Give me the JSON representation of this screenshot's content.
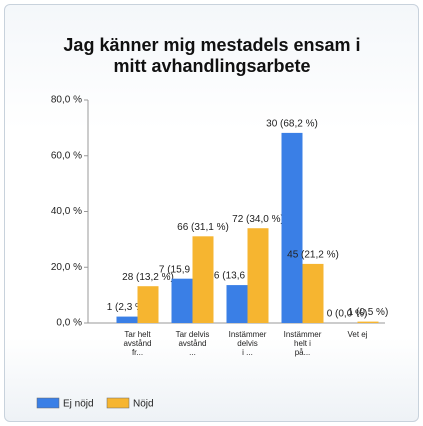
{
  "chart_data": {
    "type": "bar",
    "title": "Jag känner mig mestadels ensam i mitt avhandlingsarbete",
    "categories": [
      "Tar helt\navstånd\nfr...",
      "Tar delvis\navstånd\n...",
      "Instämmer\ndelvis\ni ...",
      "Instämmer\nhelt i\npå...",
      "Vet ej"
    ],
    "series": [
      {
        "name": "Ej nöjd",
        "color": "#3a7fe6",
        "values": [
          2.3,
          15.9,
          13.6,
          68.2,
          0.0
        ],
        "value_labels": [
          "1 (2,3 %)",
          "7 (15,9 %)",
          "6 (13,6 %)",
          "30 (68,2 %)",
          "0 (0,0 %)"
        ]
      },
      {
        "name": "Nöjd",
        "color": "#f6b530",
        "values": [
          13.2,
          31.1,
          34.0,
          21.2,
          0.5
        ],
        "value_labels": [
          "28 (13,2 %)",
          "66 (31,1 %)",
          "72 (34,0 %)",
          "45 (21,2 %)",
          "1 (0,5 %)"
        ]
      }
    ],
    "ylim": [
      0,
      80
    ],
    "yticks": [
      {
        "value": 0,
        "label": "0,0 %"
      },
      {
        "value": 20,
        "label": "20,0 %"
      },
      {
        "value": 40,
        "label": "40,0 %"
      },
      {
        "value": 60,
        "label": "60,0 %"
      },
      {
        "value": 80,
        "label": "80,0 %"
      }
    ],
    "grid": false,
    "legend": "bottom"
  }
}
